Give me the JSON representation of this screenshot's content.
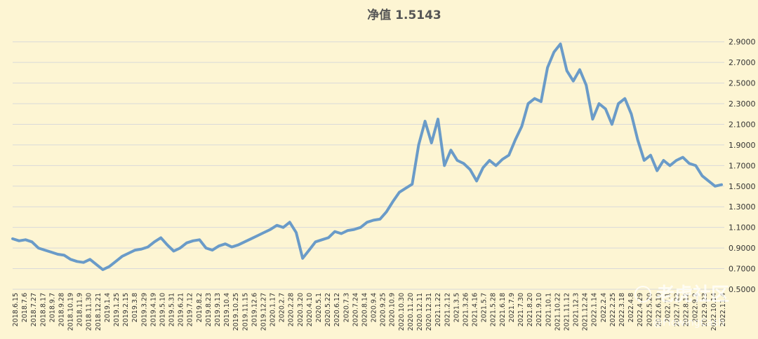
{
  "chart_data": {
    "type": "line",
    "title": "净值 1.5143",
    "ylim": [
      0.5,
      3.0
    ],
    "ytick_labels": [
      "0.5000",
      "0.7000",
      "0.9000",
      "1.1000",
      "1.3000",
      "1.5000",
      "1.7000",
      "1.9000",
      "2.1000",
      "2.3000",
      "2.5000",
      "2.7000",
      "2.9000"
    ],
    "x_labels": [
      "2018.6.15",
      "2018.7.6",
      "2018.7.27",
      "2018.8.17",
      "2018.9.7",
      "2018.9.28",
      "2018.10.19",
      "2018.11.9",
      "2018.11.30",
      "2018.12.21",
      "2019.1.4",
      "2019.1.25",
      "2019.2.15",
      "2019.3.8",
      "2019.3.29",
      "2019.4.19",
      "2019.5.10",
      "2019.5.31",
      "2019.6.21",
      "2019.7.12",
      "2019.8.2",
      "2019.8.23",
      "2019.9.13",
      "2019.10.4",
      "2019.10.25",
      "2019.11.15",
      "2019.12.6",
      "2019.12.27",
      "2020.1.17",
      "2020.2.7",
      "2020.2.28",
      "2020.3.20",
      "2020.4.10",
      "2020.5.1",
      "2020.5.22",
      "2020.6.12",
      "2020.7.3",
      "2020.7.24",
      "2020.8.14",
      "2020.9.4",
      "2020.9.25",
      "2020.10.9",
      "2020.10.30",
      "2020.11.20",
      "2020.12.11",
      "2020.12.31",
      "2021.1.22",
      "2021.2.12",
      "2021.3.5",
      "2021.3.26",
      "2021.4.16",
      "2021.5.7",
      "2021.5.28",
      "2021.6.18",
      "2021.7.9",
      "2021.7.30",
      "2021.8.20",
      "2021.9.10",
      "2021.10.1",
      "2021.10.22",
      "2021.11.12",
      "2021.12.3",
      "2021.12.24",
      "2022.1.14",
      "2022.2.4",
      "2022.2.25",
      "2022.3.18",
      "2022.4.8",
      "2022.4.29",
      "2022.5.20",
      "2022.6.10",
      "2022.7.1",
      "2022.7.22",
      "2022.8.12",
      "2022.9.2",
      "2022.9.23",
      "2022.10.14",
      "2022.11.4"
    ],
    "series": [
      {
        "color": "#6a9bc8",
        "values": [
          0.99,
          0.97,
          0.98,
          0.96,
          0.9,
          0.88,
          0.86,
          0.84,
          0.83,
          0.79,
          0.77,
          0.76,
          0.79,
          0.74,
          0.69,
          0.72,
          0.77,
          0.82,
          0.85,
          0.88,
          0.89,
          0.91,
          0.96,
          1.0,
          0.93,
          0.87,
          0.9,
          0.95,
          0.97,
          0.98,
          0.9,
          0.88,
          0.92,
          0.94,
          0.91,
          0.93,
          0.96,
          0.99,
          1.02,
          1.05,
          1.08,
          1.12,
          1.1,
          1.15,
          1.05,
          0.8,
          0.88,
          0.96,
          0.98,
          1.0,
          1.06,
          1.04,
          1.07,
          1.08,
          1.1,
          1.15,
          1.17,
          1.18,
          1.25,
          1.35,
          1.44,
          1.48,
          1.52,
          1.9,
          2.13,
          1.92,
          2.15,
          1.7,
          1.85,
          1.75,
          1.72,
          1.66,
          1.55,
          1.68,
          1.75,
          1.7,
          1.76,
          1.8,
          1.95,
          2.08,
          2.3,
          2.35,
          2.32,
          2.65,
          2.8,
          2.88,
          2.62,
          2.52,
          2.63,
          2.48,
          2.15,
          2.3,
          2.25,
          2.1,
          2.3,
          2.35,
          2.2,
          1.95,
          1.75,
          1.8,
          1.65,
          1.75,
          1.7,
          1.75,
          1.78,
          1.72,
          1.7,
          1.6,
          1.55,
          1.5,
          1.5143
        ]
      }
    ],
    "grid": true
  },
  "watermark": {
    "name": "老虎社区",
    "handle": "@FlowingCash"
  }
}
